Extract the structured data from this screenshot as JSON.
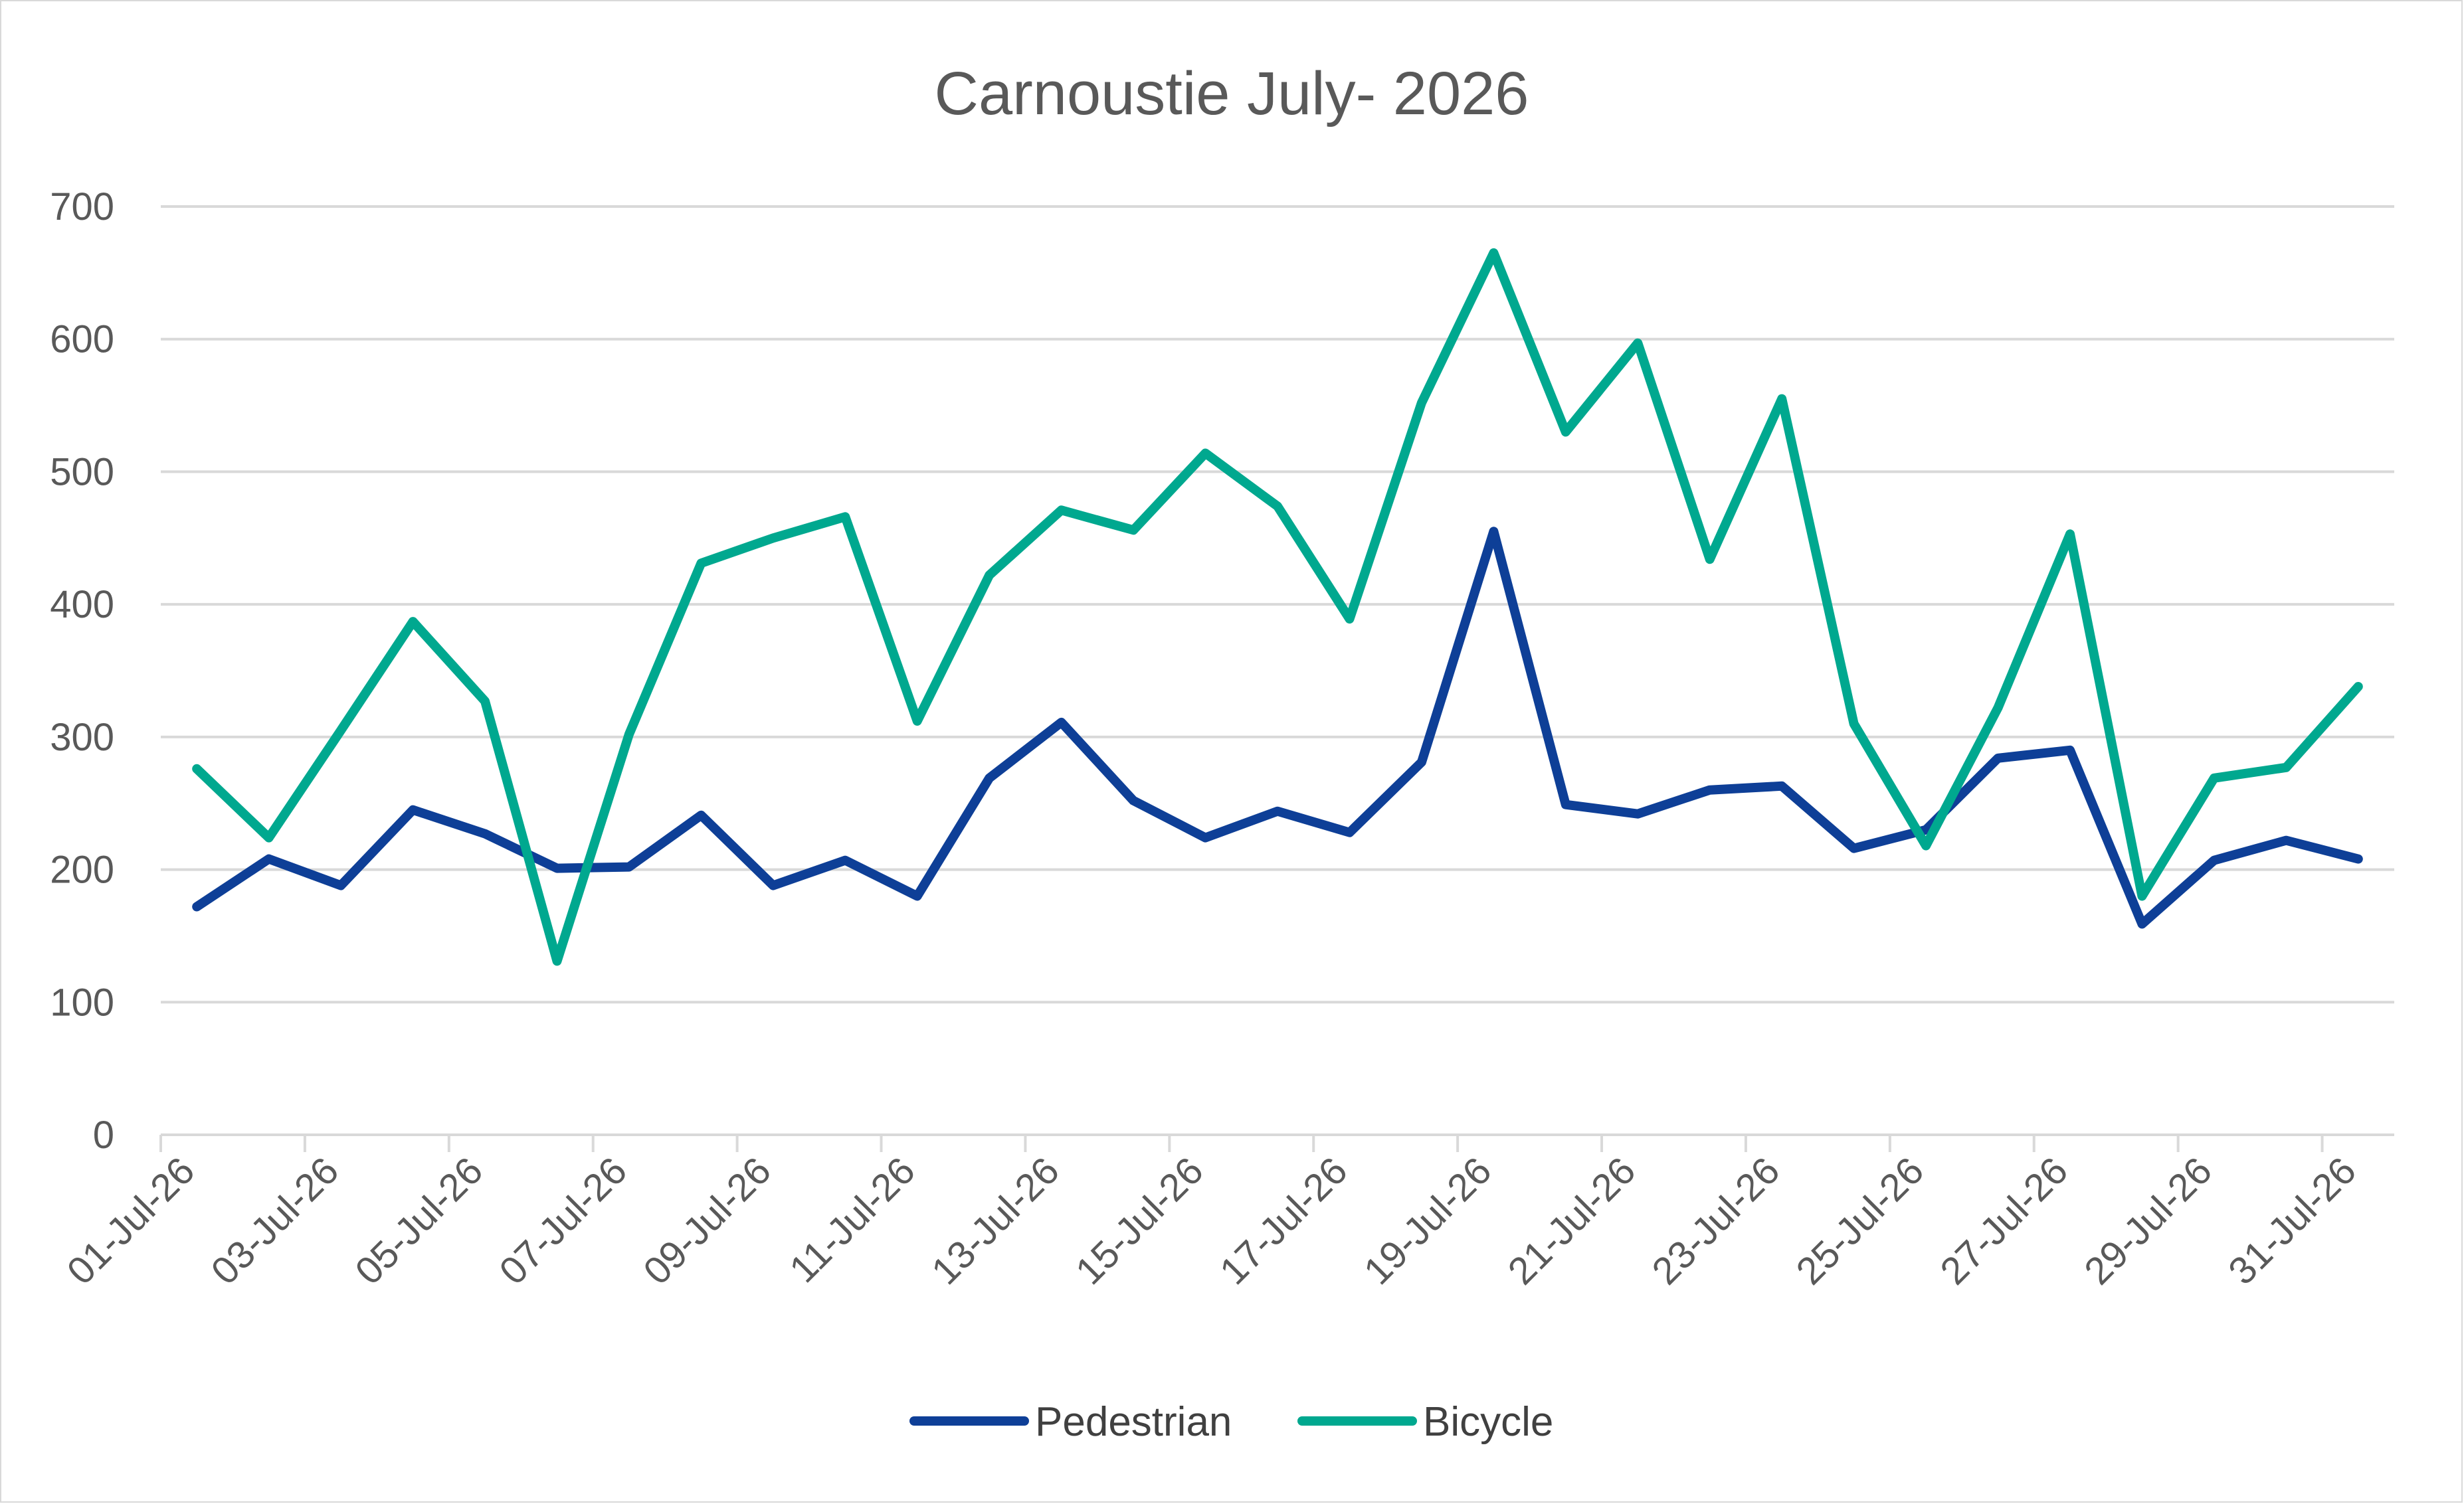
{
  "chart_data": {
    "type": "line",
    "title": "Carnoustie July- 2026",
    "ylim": [
      0,
      700
    ],
    "yticks": [
      0,
      100,
      200,
      300,
      400,
      500,
      600,
      700
    ],
    "grid": true,
    "legend_position": "bottom",
    "x": [
      "01-Jul-26",
      "02-Jul-26",
      "03-Jul-26",
      "04-Jul-26",
      "05-Jul-26",
      "06-Jul-26",
      "07-Jul-26",
      "08-Jul-26",
      "09-Jul-26",
      "10-Jul-26",
      "11-Jul-26",
      "12-Jul-26",
      "13-Jul-26",
      "14-Jul-26",
      "15-Jul-26",
      "16-Jul-26",
      "17-Jul-26",
      "18-Jul-26",
      "19-Jul-26",
      "20-Jul-26",
      "21-Jul-26",
      "22-Jul-26",
      "23-Jul-26",
      "24-Jul-26",
      "25-Jul-26",
      "26-Jul-26",
      "27-Jul-26",
      "28-Jul-26",
      "29-Jul-26",
      "30-Jul-26",
      "31-Jul-26"
    ],
    "xtick_labels": [
      "01-Jul-26",
      "03-Jul-26",
      "05-Jul-26",
      "07-Jul-26",
      "09-Jul-26",
      "11-Jul-26",
      "13-Jul-26",
      "15-Jul-26",
      "17-Jul-26",
      "19-Jul-26",
      "21-Jul-26",
      "23-Jul-26",
      "25-Jul-26",
      "27-Jul-26",
      "29-Jul-26",
      "31-Jul-26"
    ],
    "series": [
      {
        "name": "Pedestrian",
        "color": "#0e3f97",
        "values": [
          172,
          208,
          188,
          245,
          227,
          201,
          202,
          241,
          188,
          207,
          180,
          269,
          311,
          252,
          224,
          244,
          228,
          281,
          455,
          249,
          242,
          260,
          263,
          216,
          230,
          284,
          290,
          159,
          207,
          222,
          208
        ]
      },
      {
        "name": "Bicycle",
        "color": "#00a88f",
        "values": [
          276,
          224,
          305,
          387,
          327,
          131,
          302,
          431,
          450,
          466,
          312,
          422,
          471,
          456,
          514,
          474,
          389,
          552,
          665,
          530,
          597,
          434,
          555,
          310,
          218,
          322,
          453,
          180,
          269,
          277,
          338
        ]
      }
    ]
  }
}
